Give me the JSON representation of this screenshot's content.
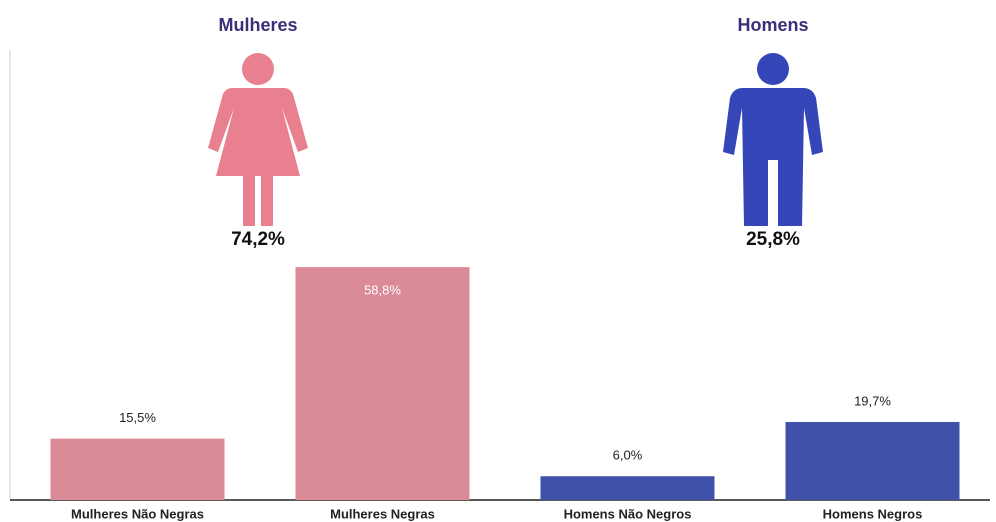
{
  "chart_data": {
    "type": "bar",
    "groups": [
      {
        "name": "Mulheres",
        "value": 74.2,
        "value_label": "74,2%",
        "color": "#e8808f"
      },
      {
        "name": "Homens",
        "value": 25.8,
        "value_label": "25,8%",
        "color": "#3446b8"
      }
    ],
    "categories": [
      "Mulheres Não Negras",
      "Mulheres Negras",
      "Homens Não Negros",
      "Homens Negros"
    ],
    "values": [
      15.5,
      58.8,
      6.0,
      19.7
    ],
    "value_labels": [
      "15,5%",
      "58,8%",
      "6,0%",
      "19,7%"
    ],
    "colors": [
      "#db8a97",
      "#db8a97",
      "#3f51a8",
      "#3f51a8"
    ]
  }
}
